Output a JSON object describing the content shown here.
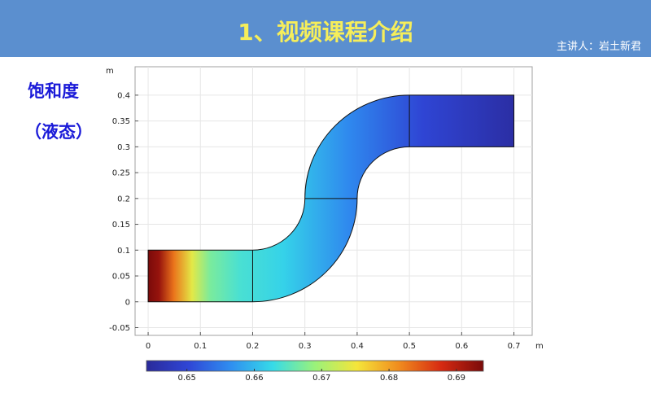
{
  "header": {
    "title": "1、视频课程介绍",
    "presenter": "主讲人：岩土新君"
  },
  "side": {
    "title": "饱和度",
    "subtitle": "（液态）"
  },
  "chart_data": {
    "type": "heatmap",
    "title": "",
    "xlabel": "m",
    "ylabel": "m",
    "xlim": [
      -0.025,
      0.735
    ],
    "ylim": [
      -0.065,
      0.455
    ],
    "x_ticks": [
      0,
      0.1,
      0.2,
      0.3,
      0.4,
      0.5,
      0.6,
      0.7
    ],
    "x_tick_labels": [
      "0",
      "0.1",
      "0.2",
      "0.3",
      "0.4",
      "0.5",
      "0.6",
      "0.7"
    ],
    "y_ticks": [
      -0.05,
      0,
      0.05,
      0.1,
      0.15,
      0.2,
      0.25,
      0.3,
      0.35,
      0.4
    ],
    "y_tick_labels": [
      "-0.05",
      "0",
      "0.05",
      "0.1",
      "0.15",
      "0.2",
      "0.25",
      "0.3",
      "0.35",
      "0.4"
    ],
    "grid": true,
    "geometry": {
      "channel_width": 0.1,
      "left_leg": {
        "x": [
          0,
          0.2
        ],
        "y": [
          0,
          0.1
        ]
      },
      "lower_bend_center": [
        0.2,
        0.2
      ],
      "upper_bend_center": [
        0.5,
        0.2
      ],
      "right_leg": {
        "x": [
          0.5,
          0.7
        ],
        "y": [
          0.3,
          0.4
        ]
      },
      "inner_radius": 0.1,
      "outer_radius": 0.2
    },
    "colorbar": {
      "min": 0.644,
      "max": 0.694,
      "ticks": [
        0.65,
        0.66,
        0.67,
        0.68,
        0.69
      ],
      "tick_labels": [
        "0.65",
        "0.66",
        "0.67",
        "0.68",
        "0.69"
      ],
      "colormap": [
        "#2a2a9a",
        "#2f46d6",
        "#2f8ef0",
        "#36dbe8",
        "#9af27a",
        "#f5e53a",
        "#f08b1e",
        "#d62a12",
        "#7a0a0a"
      ]
    },
    "field": [
      {
        "s": 0.0,
        "value": 0.694
      },
      {
        "s": 0.03,
        "value": 0.692
      },
      {
        "s": 0.07,
        "value": 0.683
      },
      {
        "s": 0.12,
        "value": 0.674
      },
      {
        "s": 0.17,
        "value": 0.667
      },
      {
        "s": 0.25,
        "value": 0.664
      },
      {
        "s": 0.37,
        "value": 0.662
      },
      {
        "s": 0.55,
        "value": 0.656
      },
      {
        "s": 0.75,
        "value": 0.65
      },
      {
        "s": 1.0,
        "value": 0.645
      }
    ]
  }
}
